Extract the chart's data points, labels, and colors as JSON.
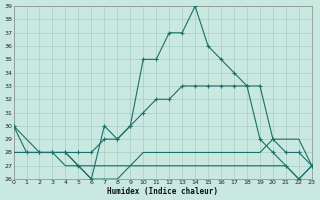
{
  "xlabel": "Humidex (Indice chaleur)",
  "background_color": "#c8e8e0",
  "grid_color": "#a8ccc4",
  "line_color": "#1a7068",
  "xlim": [
    0,
    23
  ],
  "ylim": [
    26,
    39
  ],
  "xticks": [
    0,
    1,
    2,
    3,
    4,
    5,
    6,
    7,
    8,
    9,
    10,
    11,
    12,
    13,
    14,
    15,
    16,
    17,
    18,
    19,
    20,
    21,
    22,
    23
  ],
  "yticks": [
    26,
    27,
    28,
    29,
    30,
    31,
    32,
    33,
    34,
    35,
    36,
    37,
    38,
    39
  ],
  "line1_x": [
    0,
    1,
    2,
    3,
    4,
    5,
    6,
    7,
    8,
    9,
    10,
    11,
    12,
    13,
    14,
    15,
    16,
    17,
    18,
    19,
    20,
    21,
    22,
    23
  ],
  "line1_y": [
    30,
    28,
    28,
    28,
    28,
    27,
    26,
    30,
    29,
    30,
    35,
    35,
    37,
    37,
    39,
    36,
    35,
    34,
    33,
    29,
    28,
    27,
    26,
    27
  ],
  "line2_x": [
    0,
    2,
    3,
    4,
    5,
    6,
    7,
    8,
    9,
    10,
    11,
    12,
    13,
    14,
    15,
    16,
    17,
    18,
    19,
    20,
    21,
    22,
    23
  ],
  "line2_y": [
    30,
    28,
    28,
    28,
    28,
    28,
    29,
    29,
    30,
    31,
    32,
    32,
    33,
    33,
    33,
    33,
    33,
    33,
    33,
    29,
    28,
    28,
    27
  ],
  "line3_x": [
    0,
    2,
    3,
    4,
    5,
    6,
    7,
    8,
    9,
    10,
    11,
    12,
    13,
    14,
    15,
    16,
    17,
    18,
    19,
    20,
    21,
    22,
    23
  ],
  "line3_y": [
    28,
    28,
    28,
    28,
    27,
    27,
    27,
    27,
    27,
    28,
    28,
    28,
    28,
    28,
    28,
    28,
    28,
    28,
    28,
    29,
    29,
    29,
    27
  ],
  "line4_x": [
    0,
    2,
    3,
    4,
    5,
    6,
    7,
    8,
    9,
    10,
    11,
    12,
    13,
    14,
    15,
    16,
    17,
    18,
    19,
    20,
    21,
    22,
    23
  ],
  "line4_y": [
    28,
    28,
    28,
    27,
    27,
    26,
    26,
    26,
    27,
    27,
    27,
    27,
    27,
    27,
    27,
    27,
    27,
    27,
    27,
    27,
    27,
    26,
    27
  ]
}
